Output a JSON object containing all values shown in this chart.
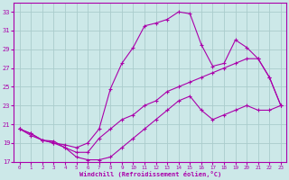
{
  "xlabel": "Windchill (Refroidissement éolien,°C)",
  "bg_color": "#cce8e8",
  "grid_color": "#aacccc",
  "line_color": "#aa00aa",
  "xlim": [
    -0.5,
    23.5
  ],
  "ylim": [
    17,
    34
  ],
  "xticks": [
    0,
    1,
    2,
    3,
    4,
    5,
    6,
    7,
    8,
    9,
    10,
    11,
    12,
    13,
    14,
    15,
    16,
    17,
    18,
    19,
    20,
    21,
    22,
    23
  ],
  "yticks": [
    17,
    19,
    21,
    23,
    25,
    27,
    29,
    31,
    33
  ],
  "curve1_x": [
    0,
    1,
    2,
    3,
    4,
    5,
    6,
    7,
    8,
    9,
    10,
    11,
    12,
    13,
    14,
    15,
    16,
    17,
    18,
    19,
    20,
    21,
    22,
    23
  ],
  "curve1_y": [
    20.5,
    20.0,
    19.3,
    19.2,
    18.5,
    17.5,
    17.2,
    17.2,
    17.5,
    18.5,
    19.5,
    20.5,
    21.5,
    22.5,
    23.5,
    24.0,
    22.5,
    21.5,
    22.0,
    22.5,
    23.0,
    22.5,
    22.5,
    23.0
  ],
  "curve2_x": [
    0,
    1,
    2,
    3,
    4,
    5,
    6,
    7,
    8,
    9,
    10,
    11,
    12,
    13,
    14,
    15,
    16,
    17,
    18,
    19,
    20,
    21,
    22,
    23
  ],
  "curve2_y": [
    20.5,
    19.8,
    19.3,
    19.0,
    18.8,
    18.5,
    19.0,
    20.5,
    24.8,
    27.5,
    29.2,
    31.5,
    31.8,
    32.2,
    33.0,
    32.8,
    29.5,
    27.2,
    27.5,
    30.0,
    29.2,
    28.0,
    26.0,
    23.0
  ],
  "curve3_x": [
    0,
    1,
    2,
    3,
    4,
    5,
    6,
    7,
    8,
    9,
    10,
    11,
    12,
    13,
    14,
    15,
    16,
    17,
    18,
    19,
    20,
    21,
    22,
    23
  ],
  "curve3_y": [
    20.5,
    20.0,
    19.3,
    19.0,
    18.5,
    18.0,
    18.0,
    19.5,
    20.5,
    21.5,
    22.0,
    23.0,
    23.5,
    24.5,
    25.0,
    25.5,
    26.0,
    26.5,
    27.0,
    27.5,
    28.0,
    28.0,
    26.0,
    23.0
  ]
}
